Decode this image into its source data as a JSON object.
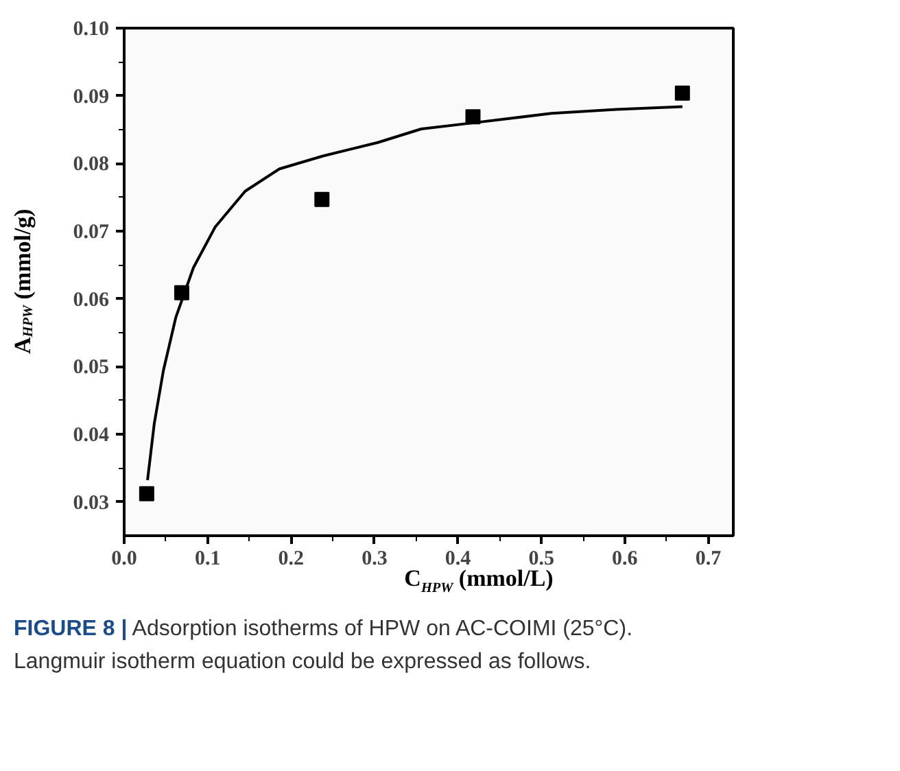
{
  "chart_data": {
    "type": "scatter",
    "xlabel": "C$_{HPW}$ (mmol/L)",
    "ylabel": "A$_{HPW}$ (mmol/g)",
    "xlim": [
      0,
      0.73
    ],
    "ylim": [
      0.025,
      0.1
    ],
    "xticks": [
      {
        "value": 0,
        "label": "0.0"
      },
      0.1,
      0.2,
      0.3,
      0.4,
      0.5,
      0.6,
      0.7
    ],
    "yticks": [
      0.03,
      0.04,
      0.05,
      0.06,
      0.07,
      0.08,
      0.09,
      {
        "value": 0.1,
        "label": "0.10"
      }
    ],
    "grid": false,
    "marker": "square",
    "series": [
      {
        "color": "#000000",
        "x": [
          0.027,
          0.069,
          0.237,
          0.418,
          0.669
        ],
        "values": [
          0.0312,
          0.0609,
          0.0747,
          0.0869,
          0.0904
        ]
      },
      {
        "type": "line",
        "marker": "none",
        "line_style": "solid",
        "color": "#000000",
        "x": [
          0.028,
          0.036,
          0.047,
          0.062,
          0.083,
          0.109,
          0.145,
          0.186,
          0.238,
          0.304,
          0.356,
          0.418,
          0.512,
          0.59,
          0.669
        ],
        "values": [
          0.0332,
          0.0415,
          0.0494,
          0.0573,
          0.0646,
          0.0706,
          0.0759,
          0.0792,
          0.0811,
          0.0831,
          0.0851,
          0.086,
          0.0874,
          0.088,
          0.0884
        ]
      }
    ],
    "annotations": [
      "FIGURE 8 | Adsorption isotherms of HPW on AC-COIMI (25°C).",
      "Langmuir isotherm equation could be expressed as follows."
    ]
  }
}
